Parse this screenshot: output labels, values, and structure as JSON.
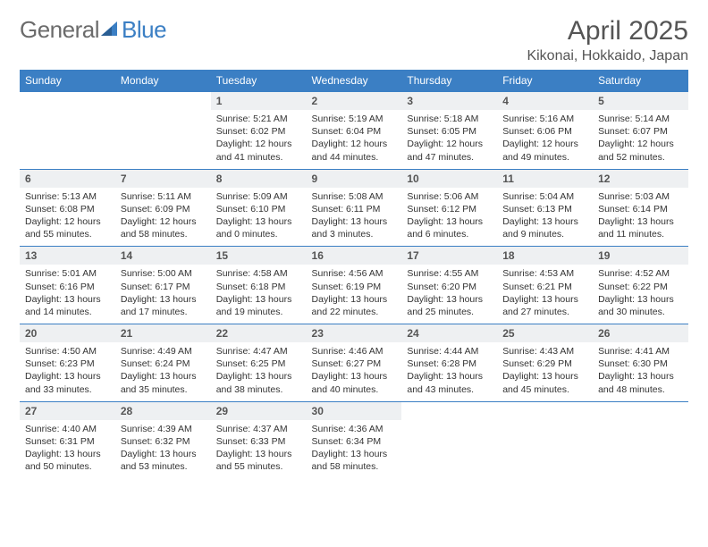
{
  "logo": {
    "text_gray": "General",
    "text_blue": "Blue"
  },
  "header": {
    "month_title": "April 2025",
    "location": "Kikonai, Hokkaido, Japan"
  },
  "colors": {
    "header_bg": "#3b7fc4",
    "header_text": "#ffffff",
    "daynum_bg": "#eef0f2",
    "page_bg": "#ffffff",
    "text": "#333333",
    "logo_gray": "#6b6b6b"
  },
  "weekdays": [
    "Sunday",
    "Monday",
    "Tuesday",
    "Wednesday",
    "Thursday",
    "Friday",
    "Saturday"
  ],
  "weeks": [
    [
      null,
      null,
      {
        "n": "1",
        "sunrise": "Sunrise: 5:21 AM",
        "sunset": "Sunset: 6:02 PM",
        "daylight": "Daylight: 12 hours and 41 minutes."
      },
      {
        "n": "2",
        "sunrise": "Sunrise: 5:19 AM",
        "sunset": "Sunset: 6:04 PM",
        "daylight": "Daylight: 12 hours and 44 minutes."
      },
      {
        "n": "3",
        "sunrise": "Sunrise: 5:18 AM",
        "sunset": "Sunset: 6:05 PM",
        "daylight": "Daylight: 12 hours and 47 minutes."
      },
      {
        "n": "4",
        "sunrise": "Sunrise: 5:16 AM",
        "sunset": "Sunset: 6:06 PM",
        "daylight": "Daylight: 12 hours and 49 minutes."
      },
      {
        "n": "5",
        "sunrise": "Sunrise: 5:14 AM",
        "sunset": "Sunset: 6:07 PM",
        "daylight": "Daylight: 12 hours and 52 minutes."
      }
    ],
    [
      {
        "n": "6",
        "sunrise": "Sunrise: 5:13 AM",
        "sunset": "Sunset: 6:08 PM",
        "daylight": "Daylight: 12 hours and 55 minutes."
      },
      {
        "n": "7",
        "sunrise": "Sunrise: 5:11 AM",
        "sunset": "Sunset: 6:09 PM",
        "daylight": "Daylight: 12 hours and 58 minutes."
      },
      {
        "n": "8",
        "sunrise": "Sunrise: 5:09 AM",
        "sunset": "Sunset: 6:10 PM",
        "daylight": "Daylight: 13 hours and 0 minutes."
      },
      {
        "n": "9",
        "sunrise": "Sunrise: 5:08 AM",
        "sunset": "Sunset: 6:11 PM",
        "daylight": "Daylight: 13 hours and 3 minutes."
      },
      {
        "n": "10",
        "sunrise": "Sunrise: 5:06 AM",
        "sunset": "Sunset: 6:12 PM",
        "daylight": "Daylight: 13 hours and 6 minutes."
      },
      {
        "n": "11",
        "sunrise": "Sunrise: 5:04 AM",
        "sunset": "Sunset: 6:13 PM",
        "daylight": "Daylight: 13 hours and 9 minutes."
      },
      {
        "n": "12",
        "sunrise": "Sunrise: 5:03 AM",
        "sunset": "Sunset: 6:14 PM",
        "daylight": "Daylight: 13 hours and 11 minutes."
      }
    ],
    [
      {
        "n": "13",
        "sunrise": "Sunrise: 5:01 AM",
        "sunset": "Sunset: 6:16 PM",
        "daylight": "Daylight: 13 hours and 14 minutes."
      },
      {
        "n": "14",
        "sunrise": "Sunrise: 5:00 AM",
        "sunset": "Sunset: 6:17 PM",
        "daylight": "Daylight: 13 hours and 17 minutes."
      },
      {
        "n": "15",
        "sunrise": "Sunrise: 4:58 AM",
        "sunset": "Sunset: 6:18 PM",
        "daylight": "Daylight: 13 hours and 19 minutes."
      },
      {
        "n": "16",
        "sunrise": "Sunrise: 4:56 AM",
        "sunset": "Sunset: 6:19 PM",
        "daylight": "Daylight: 13 hours and 22 minutes."
      },
      {
        "n": "17",
        "sunrise": "Sunrise: 4:55 AM",
        "sunset": "Sunset: 6:20 PM",
        "daylight": "Daylight: 13 hours and 25 minutes."
      },
      {
        "n": "18",
        "sunrise": "Sunrise: 4:53 AM",
        "sunset": "Sunset: 6:21 PM",
        "daylight": "Daylight: 13 hours and 27 minutes."
      },
      {
        "n": "19",
        "sunrise": "Sunrise: 4:52 AM",
        "sunset": "Sunset: 6:22 PM",
        "daylight": "Daylight: 13 hours and 30 minutes."
      }
    ],
    [
      {
        "n": "20",
        "sunrise": "Sunrise: 4:50 AM",
        "sunset": "Sunset: 6:23 PM",
        "daylight": "Daylight: 13 hours and 33 minutes."
      },
      {
        "n": "21",
        "sunrise": "Sunrise: 4:49 AM",
        "sunset": "Sunset: 6:24 PM",
        "daylight": "Daylight: 13 hours and 35 minutes."
      },
      {
        "n": "22",
        "sunrise": "Sunrise: 4:47 AM",
        "sunset": "Sunset: 6:25 PM",
        "daylight": "Daylight: 13 hours and 38 minutes."
      },
      {
        "n": "23",
        "sunrise": "Sunrise: 4:46 AM",
        "sunset": "Sunset: 6:27 PM",
        "daylight": "Daylight: 13 hours and 40 minutes."
      },
      {
        "n": "24",
        "sunrise": "Sunrise: 4:44 AM",
        "sunset": "Sunset: 6:28 PM",
        "daylight": "Daylight: 13 hours and 43 minutes."
      },
      {
        "n": "25",
        "sunrise": "Sunrise: 4:43 AM",
        "sunset": "Sunset: 6:29 PM",
        "daylight": "Daylight: 13 hours and 45 minutes."
      },
      {
        "n": "26",
        "sunrise": "Sunrise: 4:41 AM",
        "sunset": "Sunset: 6:30 PM",
        "daylight": "Daylight: 13 hours and 48 minutes."
      }
    ],
    [
      {
        "n": "27",
        "sunrise": "Sunrise: 4:40 AM",
        "sunset": "Sunset: 6:31 PM",
        "daylight": "Daylight: 13 hours and 50 minutes."
      },
      {
        "n": "28",
        "sunrise": "Sunrise: 4:39 AM",
        "sunset": "Sunset: 6:32 PM",
        "daylight": "Daylight: 13 hours and 53 minutes."
      },
      {
        "n": "29",
        "sunrise": "Sunrise: 4:37 AM",
        "sunset": "Sunset: 6:33 PM",
        "daylight": "Daylight: 13 hours and 55 minutes."
      },
      {
        "n": "30",
        "sunrise": "Sunrise: 4:36 AM",
        "sunset": "Sunset: 6:34 PM",
        "daylight": "Daylight: 13 hours and 58 minutes."
      },
      null,
      null,
      null
    ]
  ]
}
